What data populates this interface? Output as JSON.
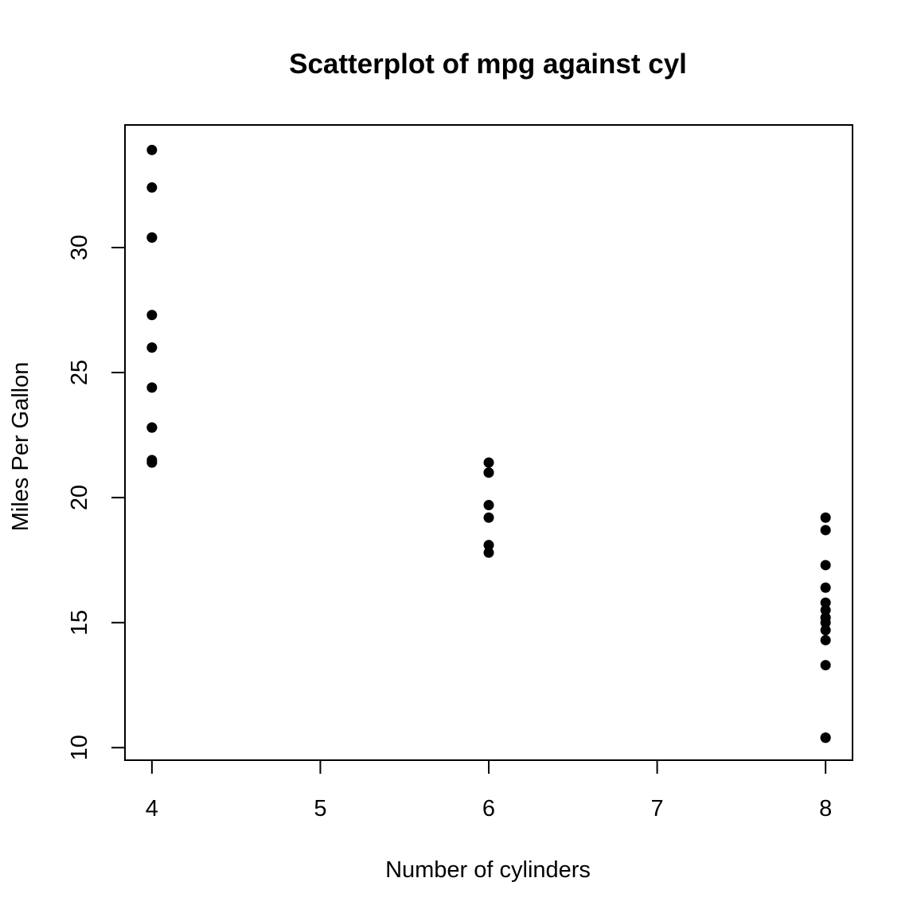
{
  "chart_data": {
    "type": "scatter",
    "title": "Scatterplot of mpg against cyl",
    "xlabel": "Number of cylinders",
    "ylabel": "Miles Per Gallon",
    "xlim": [
      3.84,
      8.16
    ],
    "ylim": [
      9.5,
      34.9
    ],
    "x_ticks": [
      4,
      5,
      6,
      7,
      8
    ],
    "y_ticks": [
      10,
      15,
      20,
      25,
      30
    ],
    "grid": false,
    "legend": "none",
    "marker_color": "#000000",
    "points": [
      {
        "x": 6,
        "y": 21.0
      },
      {
        "x": 6,
        "y": 21.0
      },
      {
        "x": 4,
        "y": 22.8
      },
      {
        "x": 6,
        "y": 21.4
      },
      {
        "x": 8,
        "y": 18.7
      },
      {
        "x": 6,
        "y": 18.1
      },
      {
        "x": 8,
        "y": 14.3
      },
      {
        "x": 4,
        "y": 24.4
      },
      {
        "x": 4,
        "y": 22.8
      },
      {
        "x": 6,
        "y": 19.2
      },
      {
        "x": 6,
        "y": 17.8
      },
      {
        "x": 8,
        "y": 16.4
      },
      {
        "x": 8,
        "y": 17.3
      },
      {
        "x": 8,
        "y": 15.2
      },
      {
        "x": 8,
        "y": 10.4
      },
      {
        "x": 8,
        "y": 10.4
      },
      {
        "x": 8,
        "y": 14.7
      },
      {
        "x": 4,
        "y": 32.4
      },
      {
        "x": 4,
        "y": 30.4
      },
      {
        "x": 4,
        "y": 33.9
      },
      {
        "x": 4,
        "y": 21.5
      },
      {
        "x": 8,
        "y": 15.5
      },
      {
        "x": 8,
        "y": 15.2
      },
      {
        "x": 8,
        "y": 13.3
      },
      {
        "x": 8,
        "y": 19.2
      },
      {
        "x": 4,
        "y": 27.3
      },
      {
        "x": 4,
        "y": 26.0
      },
      {
        "x": 4,
        "y": 30.4
      },
      {
        "x": 8,
        "y": 15.8
      },
      {
        "x": 6,
        "y": 19.7
      },
      {
        "x": 8,
        "y": 15.0
      },
      {
        "x": 4,
        "y": 21.4
      }
    ]
  }
}
